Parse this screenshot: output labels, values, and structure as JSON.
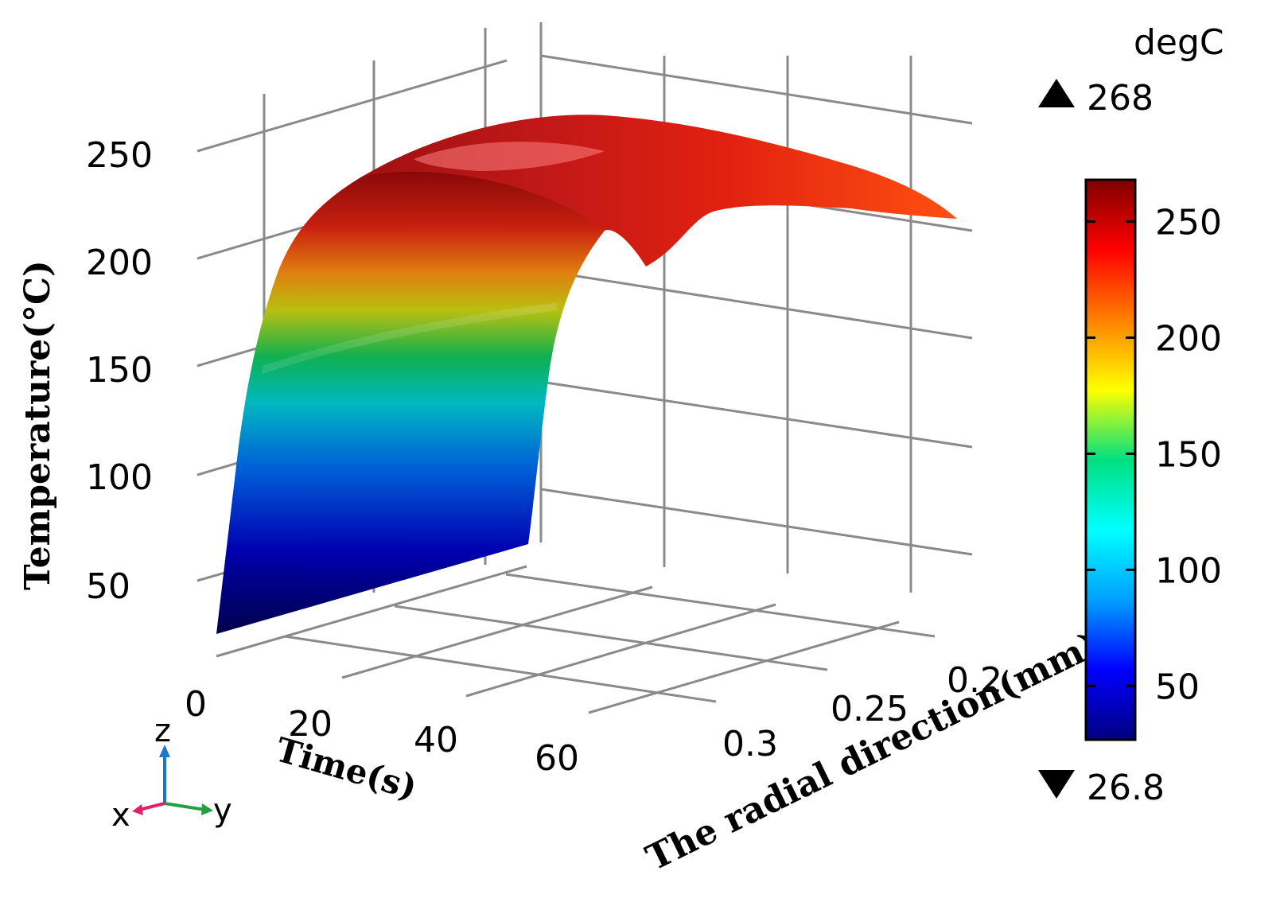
{
  "chart_data": {
    "type": "surface3d",
    "zlabel": "Temperature(°C)",
    "xlabel": "Time(s)",
    "ylabel": "The radial direction(mm)",
    "z_ticks": [
      "50",
      "100",
      "150",
      "200",
      "250"
    ],
    "x_ticks": [
      "0",
      "20",
      "40",
      "60"
    ],
    "y_ticks": [
      "0.2",
      "0.25",
      "0.3"
    ],
    "colorbar": {
      "unit": "degC",
      "max_label": "268",
      "min_label": "26.8",
      "max": 268,
      "min": 26.8,
      "ticks": [
        "250",
        "200",
        "150",
        "100",
        "50"
      ],
      "tick_values": [
        250,
        200,
        150,
        100,
        50
      ]
    },
    "colormap": [
      "#00007f",
      "#0000ff",
      "#00a0ff",
      "#00ffff",
      "#00e080",
      "#ffff00",
      "#ff8000",
      "#ff0000",
      "#7f0000"
    ],
    "triad": {
      "z": "z",
      "x": "x",
      "y": "y"
    },
    "triad_colors": {
      "z": "#1e78c8",
      "x": "#e0206a",
      "y": "#20a040"
    }
  }
}
